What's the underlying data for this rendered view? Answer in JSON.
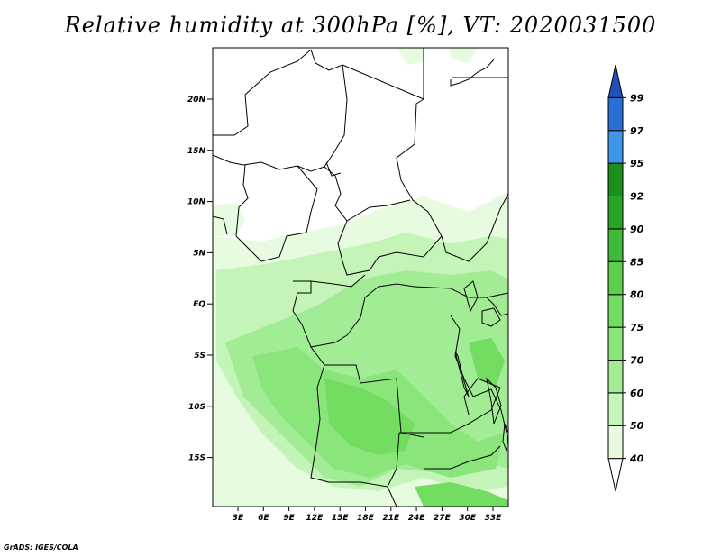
{
  "title": "Relative humidity at 300hPa [%], VT: 2020031500",
  "credit": "GrADS: IGES/COLA",
  "map": {
    "lat_ticks": [
      "20N",
      "15N",
      "10N",
      "5N",
      "EQ",
      "5S",
      "10S",
      "15S"
    ],
    "lon_ticks": [
      "3E",
      "6E",
      "9E",
      "12E",
      "15E",
      "18E",
      "21E",
      "24E",
      "27E",
      "30E",
      "33E"
    ]
  },
  "colorbar": {
    "levels": [
      "40",
      "50",
      "60",
      "70",
      "75",
      "80",
      "85",
      "90",
      "92",
      "95",
      "97",
      "99"
    ],
    "colors": [
      "#ffffff",
      "#e6fbe0",
      "#c4f4b8",
      "#a3ec96",
      "#8ae57a",
      "#72dd61",
      "#5ccf4e",
      "#3fbb39",
      "#2aa427",
      "#1c8e1c",
      "#3f96e8",
      "#2a6fd6",
      "#1f52b8"
    ]
  }
}
